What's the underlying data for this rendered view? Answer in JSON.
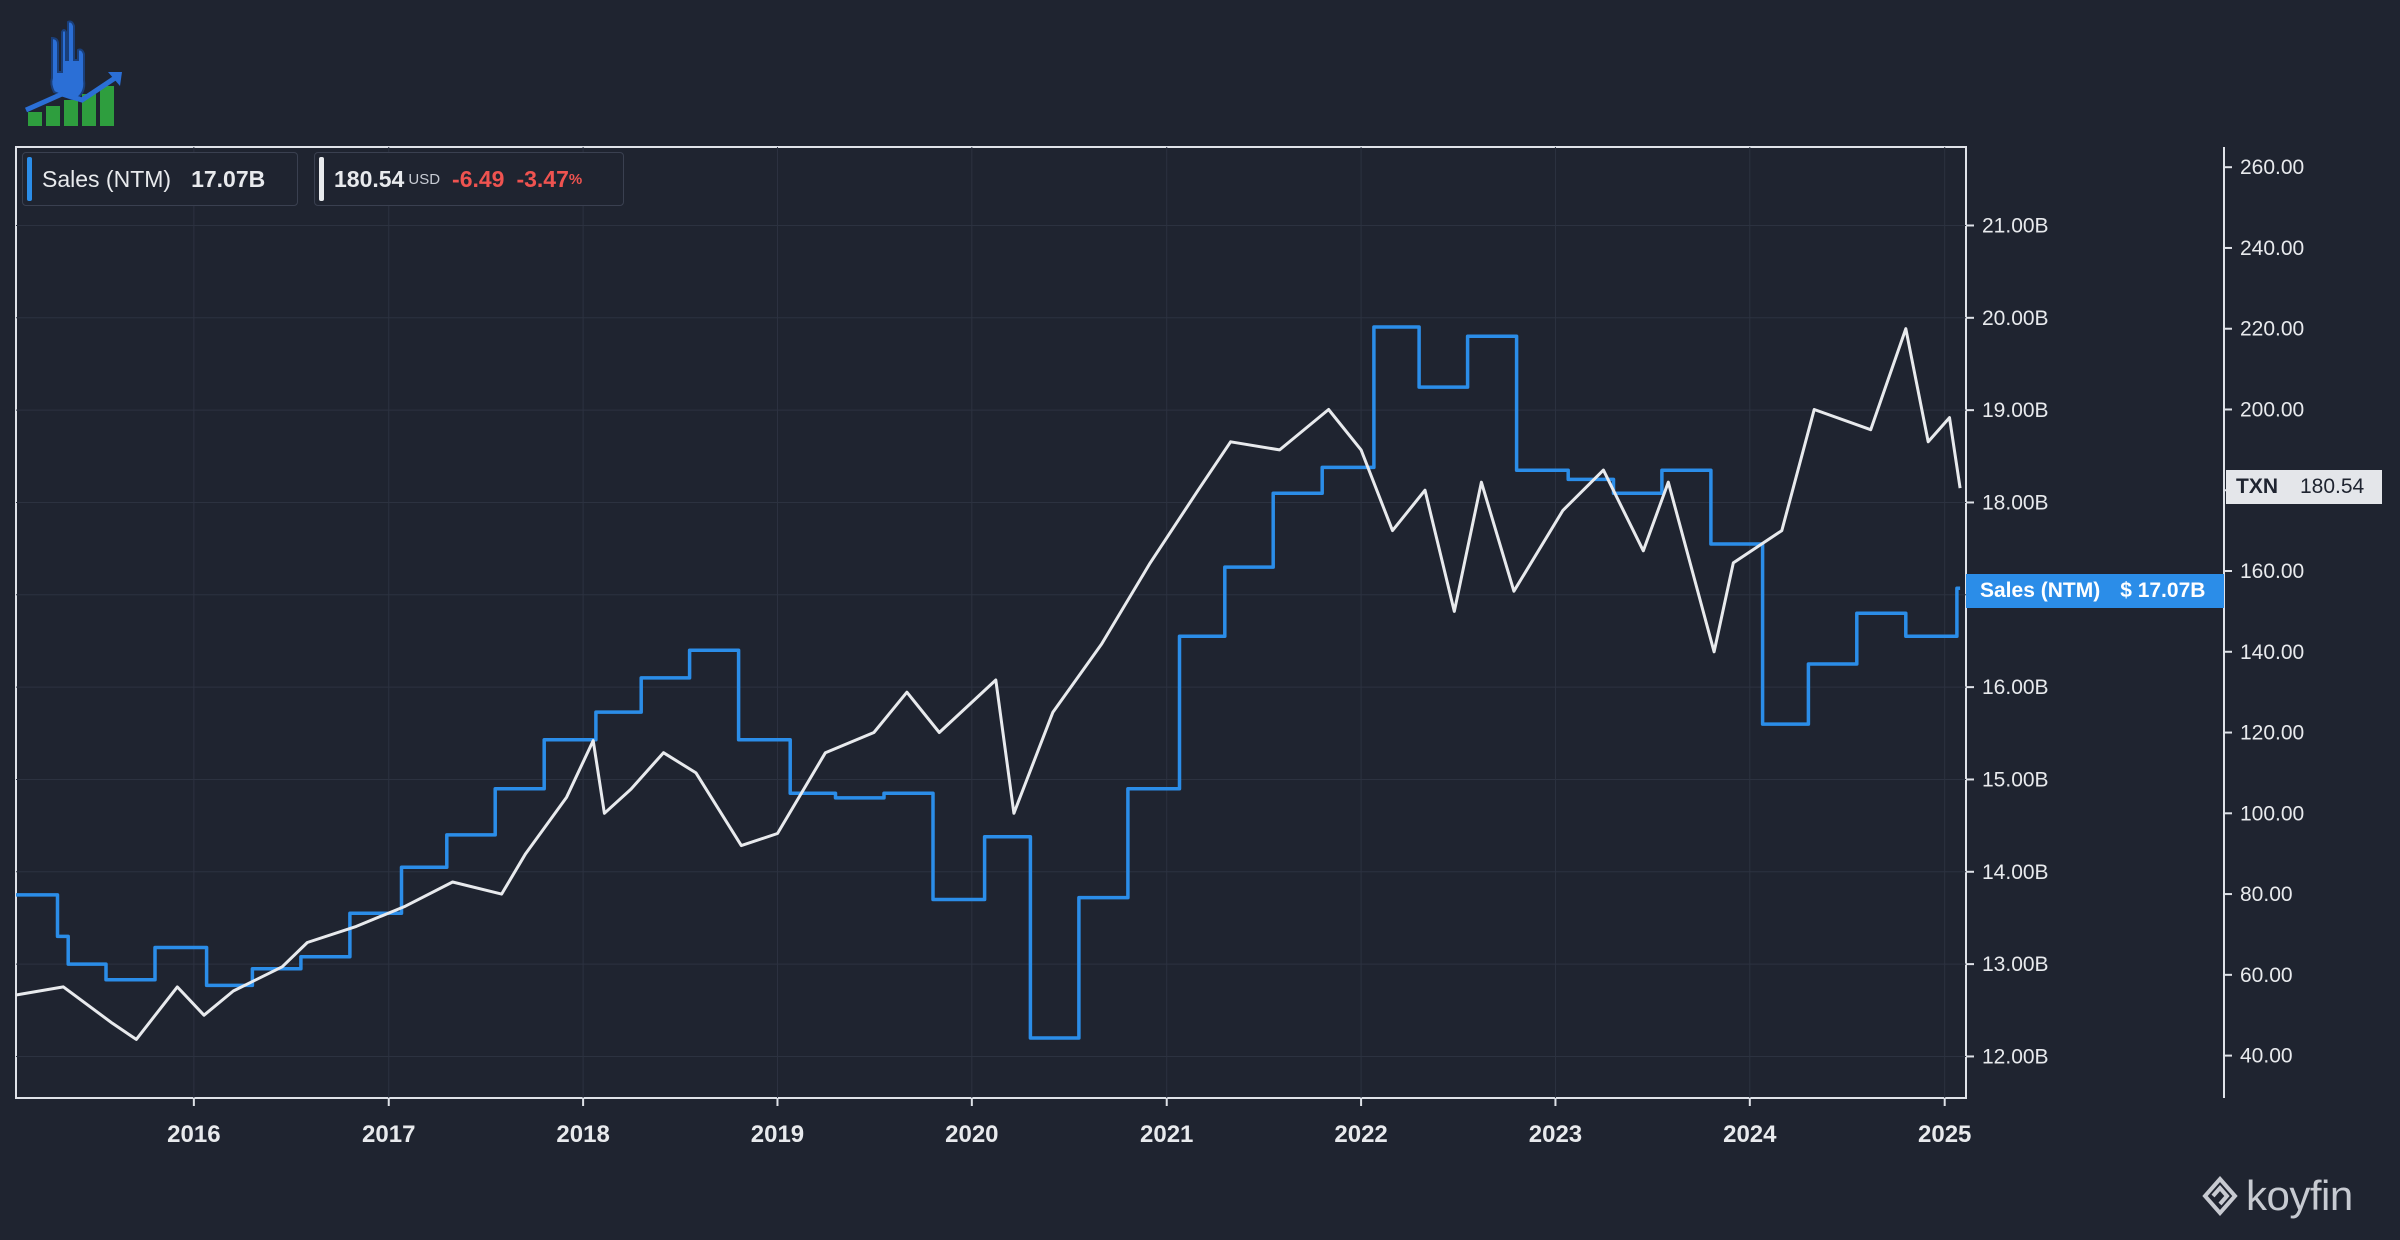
{
  "legend": {
    "sales_label": "Sales (NTM)",
    "sales_value": "17.07B",
    "price_value": "180.54",
    "price_currency": "USD",
    "price_change": "-6.49",
    "price_change_pct": "-3.47",
    "pct_symbol": "%"
  },
  "tags": {
    "ticker": "TXN",
    "ticker_price": "180.54",
    "sales_label": "Sales (NTM)",
    "sales_value": "$ 17.07B"
  },
  "brand": {
    "name": "koyfin"
  },
  "colors": {
    "background": "#1f2430",
    "sales_line": "#2b8de8",
    "price_line": "#e8eaed",
    "negative": "#ef5350",
    "grid": "#2c3240"
  },
  "icons": {
    "logo": "rock-hand-growth-chart-icon",
    "brand": "koyfin-logo-icon"
  },
  "chart_data": {
    "type": "line",
    "x_ticks": [
      "2016",
      "2017",
      "2018",
      "2019",
      "2020",
      "2021",
      "2022",
      "2023",
      "2024",
      "2025"
    ],
    "xlim": [
      "2015-02-01",
      "2025-02-10"
    ],
    "y_left_axis": {
      "label": "",
      "ticks": [
        "12.00B",
        "13.00B",
        "14.00B",
        "15.00B",
        "16.00B",
        "17.00B",
        "18.00B",
        "19.00B",
        "20.00B",
        "21.00B"
      ],
      "ylim": [
        11.55,
        21.85
      ]
    },
    "y_right_axis": {
      "label": "",
      "ticks": [
        "40.00",
        "60.00",
        "80.00",
        "100.00",
        "120.00",
        "140.00",
        "160.00",
        "180.00",
        "200.00",
        "220.00",
        "240.00",
        "260.00"
      ],
      "ylim": [
        29.5,
        265
      ]
    },
    "grid": true,
    "series": [
      {
        "name": "Sales (NTM)",
        "axis": "left",
        "step": true,
        "points": [
          [
            "2015-02-01",
            13.75
          ],
          [
            "2015-04-20",
            13.3
          ],
          [
            "2015-05-10",
            13.0
          ],
          [
            "2015-07-20",
            12.83
          ],
          [
            "2015-10-20",
            13.18
          ],
          [
            "2016-01-25",
            12.77
          ],
          [
            "2016-04-20",
            12.95
          ],
          [
            "2016-07-20",
            13.08
          ],
          [
            "2016-10-20",
            13.55
          ],
          [
            "2017-01-25",
            14.05
          ],
          [
            "2017-04-20",
            14.4
          ],
          [
            "2017-07-20",
            14.9
          ],
          [
            "2017-10-20",
            15.43
          ],
          [
            "2018-01-25",
            15.73
          ],
          [
            "2018-04-20",
            16.1
          ],
          [
            "2018-07-20",
            16.4
          ],
          [
            "2018-10-20",
            15.43
          ],
          [
            "2019-01-25",
            14.85
          ],
          [
            "2019-04-20",
            14.8
          ],
          [
            "2019-07-20",
            14.85
          ],
          [
            "2019-10-20",
            13.7
          ],
          [
            "2020-01-25",
            14.38
          ],
          [
            "2020-04-20",
            12.2
          ],
          [
            "2020-07-20",
            13.72
          ],
          [
            "2020-10-20",
            14.9
          ],
          [
            "2021-01-25",
            16.55
          ],
          [
            "2021-04-20",
            17.3
          ],
          [
            "2021-07-20",
            18.1
          ],
          [
            "2021-10-20",
            18.38
          ],
          [
            "2022-01-25",
            19.9
          ],
          [
            "2022-04-20",
            19.25
          ],
          [
            "2022-07-20",
            19.8
          ],
          [
            "2022-10-20",
            18.35
          ],
          [
            "2023-01-25",
            18.25
          ],
          [
            "2023-04-20",
            18.1
          ],
          [
            "2023-07-20",
            18.35
          ],
          [
            "2023-10-20",
            17.55
          ],
          [
            "2024-01-25",
            15.6
          ],
          [
            "2024-04-20",
            16.25
          ],
          [
            "2024-07-20",
            16.8
          ],
          [
            "2024-10-20",
            16.55
          ],
          [
            "2025-01-24",
            17.07
          ],
          [
            "2025-01-30",
            17.07
          ]
        ]
      },
      {
        "name": "TXN",
        "axis": "right",
        "step": false,
        "points": [
          [
            "2015-02-01",
            55
          ],
          [
            "2015-05-01",
            57
          ],
          [
            "2015-08-01",
            48
          ],
          [
            "2015-09-15",
            44
          ],
          [
            "2015-12-01",
            57
          ],
          [
            "2016-01-20",
            50
          ],
          [
            "2016-03-15",
            56
          ],
          [
            "2016-06-15",
            62
          ],
          [
            "2016-08-01",
            68
          ],
          [
            "2016-11-01",
            72
          ],
          [
            "2017-02-01",
            77
          ],
          [
            "2017-05-01",
            83
          ],
          [
            "2017-08-01",
            80
          ],
          [
            "2017-09-15",
            90
          ],
          [
            "2017-12-01",
            104
          ],
          [
            "2018-01-20",
            118
          ],
          [
            "2018-02-10",
            100
          ],
          [
            "2018-04-01",
            106
          ],
          [
            "2018-06-01",
            115
          ],
          [
            "2018-08-01",
            110
          ],
          [
            "2018-10-25",
            92
          ],
          [
            "2019-01-01",
            95
          ],
          [
            "2019-04-01",
            115
          ],
          [
            "2019-07-01",
            120
          ],
          [
            "2019-09-01",
            130
          ],
          [
            "2019-11-01",
            120
          ],
          [
            "2020-02-15",
            133
          ],
          [
            "2020-03-20",
            100
          ],
          [
            "2020-06-01",
            125
          ],
          [
            "2020-09-01",
            142
          ],
          [
            "2020-12-01",
            162
          ],
          [
            "2021-03-01",
            180
          ],
          [
            "2021-05-01",
            192
          ],
          [
            "2021-08-01",
            190
          ],
          [
            "2021-11-01",
            200
          ],
          [
            "2022-01-01",
            190
          ],
          [
            "2022-03-01",
            170
          ],
          [
            "2022-05-01",
            180
          ],
          [
            "2022-06-25",
            150
          ],
          [
            "2022-08-15",
            182
          ],
          [
            "2022-10-15",
            155
          ],
          [
            "2023-01-15",
            175
          ],
          [
            "2023-04-01",
            185
          ],
          [
            "2023-06-15",
            165
          ],
          [
            "2023-08-01",
            182
          ],
          [
            "2023-10-26",
            140
          ],
          [
            "2023-12-01",
            162
          ],
          [
            "2024-03-01",
            170
          ],
          [
            "2024-05-01",
            200
          ],
          [
            "2024-08-15",
            195
          ],
          [
            "2024-10-20",
            220
          ],
          [
            "2024-12-01",
            192
          ],
          [
            "2025-01-10",
            198
          ],
          [
            "2025-01-30",
            180.54
          ]
        ]
      }
    ]
  }
}
